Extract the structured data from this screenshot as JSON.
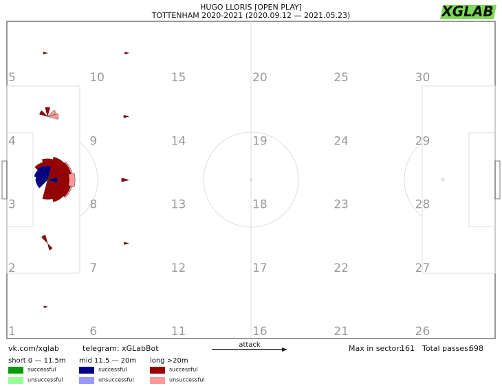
{
  "header": {
    "title": "HUGO LLORIS [OPEN PLAY]",
    "subtitle": "TOTTENHAM 2020-2021 (2020.09.12 — 2021.05.23)",
    "logo": "XGLAB"
  },
  "zones": [
    "1",
    "2",
    "3",
    "4",
    "5",
    "6",
    "7",
    "8",
    "9",
    "10",
    "11",
    "12",
    "13",
    "14",
    "15",
    "16",
    "17",
    "18",
    "19",
    "20",
    "21",
    "22",
    "23",
    "24",
    "25",
    "26",
    "27",
    "28",
    "29",
    "30"
  ],
  "footer": {
    "vk": "vk.com/xglab",
    "telegram": "telegram: xGLabBot",
    "attack": "attack",
    "max_label": "Max in sector:",
    "max_value": 161,
    "total_label": "Total passes:",
    "total_value": 698
  },
  "legend": [
    {
      "title": "short 0 — 11.5m",
      "items": [
        {
          "label": "successful",
          "color": "#0a9a0a",
          "wedges": []
        },
        {
          "label": "unsuccessful",
          "color": "#99ff99",
          "wedges": []
        }
      ]
    },
    {
      "title": "mid 11.5 — 20m",
      "items": [
        {
          "label": "successful",
          "color": "#00008b",
          "wedges": [
            {
              "zone": 3,
              "direction": 90,
              "count": 40
            },
            {
              "zone": 3,
              "direction": 120,
              "count": 45
            },
            {
              "zone": 3,
              "direction": 150,
              "count": 40
            },
            {
              "zone": 3,
              "direction": 180,
              "count": 30
            },
            {
              "zone": 3,
              "direction": 210,
              "count": 28
            },
            {
              "zone": 3,
              "direction": 0,
              "count": 20
            }
          ]
        },
        {
          "label": "unsuccessful",
          "color": "#9999ff",
          "wedges": []
        }
      ]
    },
    {
      "title": "long >20m",
      "items": [
        {
          "label": "successful",
          "color": "#990000",
          "wedges": [
            {
              "zone": 3,
              "direction": 30,
              "count": 125
            },
            {
              "zone": 3,
              "direction": 60,
              "count": 120
            },
            {
              "zone": 3,
              "direction": 90,
              "count": 95
            },
            {
              "zone": 3,
              "direction": 120,
              "count": 70
            },
            {
              "zone": 3,
              "direction": 330,
              "count": 120
            },
            {
              "zone": 3,
              "direction": 300,
              "count": 110
            },
            {
              "zone": 3,
              "direction": 270,
              "count": 80
            },
            {
              "zone": 3,
              "direction": 0,
              "count": 100
            },
            {
              "zone": 4,
              "direction": 90,
              "count": 18
            },
            {
              "zone": 4,
              "direction": 150,
              "count": 15
            },
            {
              "zone": 2,
              "direction": 120,
              "count": 16
            },
            {
              "zone": 2,
              "direction": 300,
              "count": 10
            },
            {
              "zone": 8,
              "direction": 180,
              "count": 12
            },
            {
              "zone": 9,
              "direction": 180,
              "count": 6
            },
            {
              "zone": 7,
              "direction": 180,
              "count": 5
            },
            {
              "zone": 10,
              "direction": 180,
              "count": 4
            },
            {
              "zone": 5,
              "direction": 180,
              "count": 4
            },
            {
              "zone": 1,
              "direction": 180,
              "count": 3
            }
          ]
        },
        {
          "label": "unsuccessful",
          "color": "#ff9999",
          "wedges": [
            {
              "zone": 3,
              "direction": 0,
              "count": 161
            },
            {
              "zone": 3,
              "direction": 30,
              "count": 140
            },
            {
              "zone": 3,
              "direction": 330,
              "count": 135
            },
            {
              "zone": 4,
              "direction": 0,
              "count": 25
            },
            {
              "zone": 4,
              "direction": 30,
              "count": 18
            }
          ]
        }
      ]
    }
  ]
}
